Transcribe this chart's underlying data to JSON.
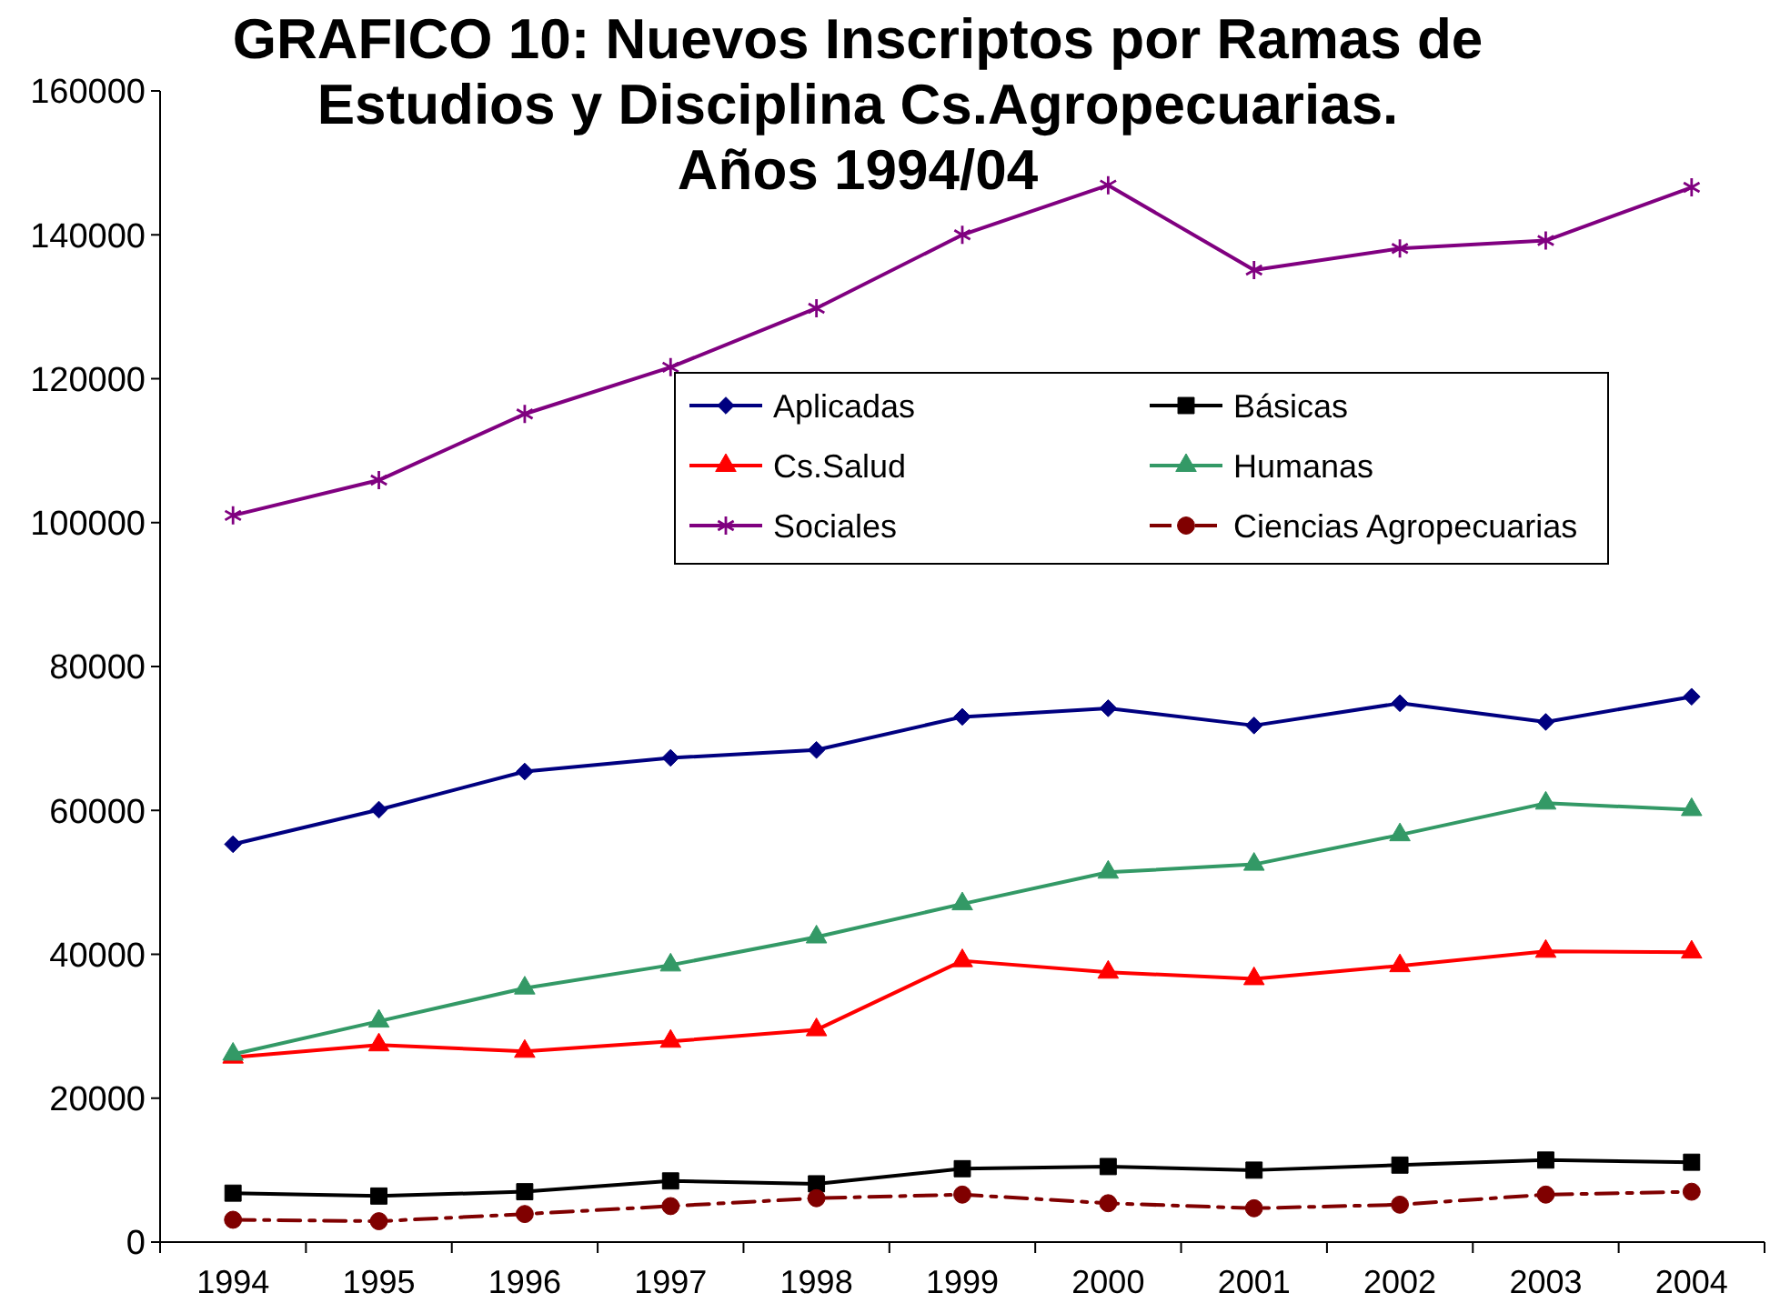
{
  "chart_data": {
    "type": "line",
    "title": "GRAFICO 10: Nuevos Inscriptos por Ramas de\nEstudios y Disciplina Cs.Agropecuarias.\nAños 1994/04",
    "categories": [
      "1994",
      "1995",
      "1996",
      "1997",
      "1998",
      "1999",
      "2000",
      "2001",
      "2002",
      "2003",
      "2004"
    ],
    "ylim": [
      0,
      160000
    ],
    "yticks": [
      0,
      20000,
      40000,
      60000,
      80000,
      100000,
      120000,
      140000,
      160000
    ],
    "legend": "top right",
    "series": [
      {
        "name": "Aplicadas",
        "color": "#000080",
        "marker": "diamond",
        "values": [
          55300,
          60100,
          65400,
          67300,
          68400,
          73000,
          74200,
          71800,
          74900,
          72300,
          75800
        ]
      },
      {
        "name": "Básicas",
        "color": "#000000",
        "marker": "square",
        "values": [
          6800,
          6400,
          7000,
          8500,
          8100,
          10200,
          10500,
          10000,
          10700,
          11400,
          11100
        ]
      },
      {
        "name": "Cs.Salud",
        "color": "#ff0000",
        "marker": "triangle",
        "values": [
          25700,
          27400,
          26500,
          27900,
          29500,
          39100,
          37500,
          36600,
          38400,
          40400,
          40300
        ]
      },
      {
        "name": "Humanas",
        "color": "#339966",
        "marker": "triangle",
        "values": [
          26100,
          30700,
          35300,
          38500,
          42400,
          47000,
          51400,
          52500,
          56600,
          61000,
          60100
        ]
      },
      {
        "name": "Sociales",
        "color": "#800080",
        "marker": "cross",
        "values": [
          101000,
          105900,
          115100,
          121600,
          129800,
          140000,
          146900,
          135100,
          138100,
          139200,
          146600
        ]
      },
      {
        "name": "Ciencias Agropecuarias",
        "color": "#800000",
        "marker": "circle",
        "line_style": "dashed",
        "values": [
          3100,
          2900,
          3900,
          5000,
          6100,
          6600,
          5400,
          4700,
          5200,
          6600,
          7000
        ]
      }
    ]
  }
}
